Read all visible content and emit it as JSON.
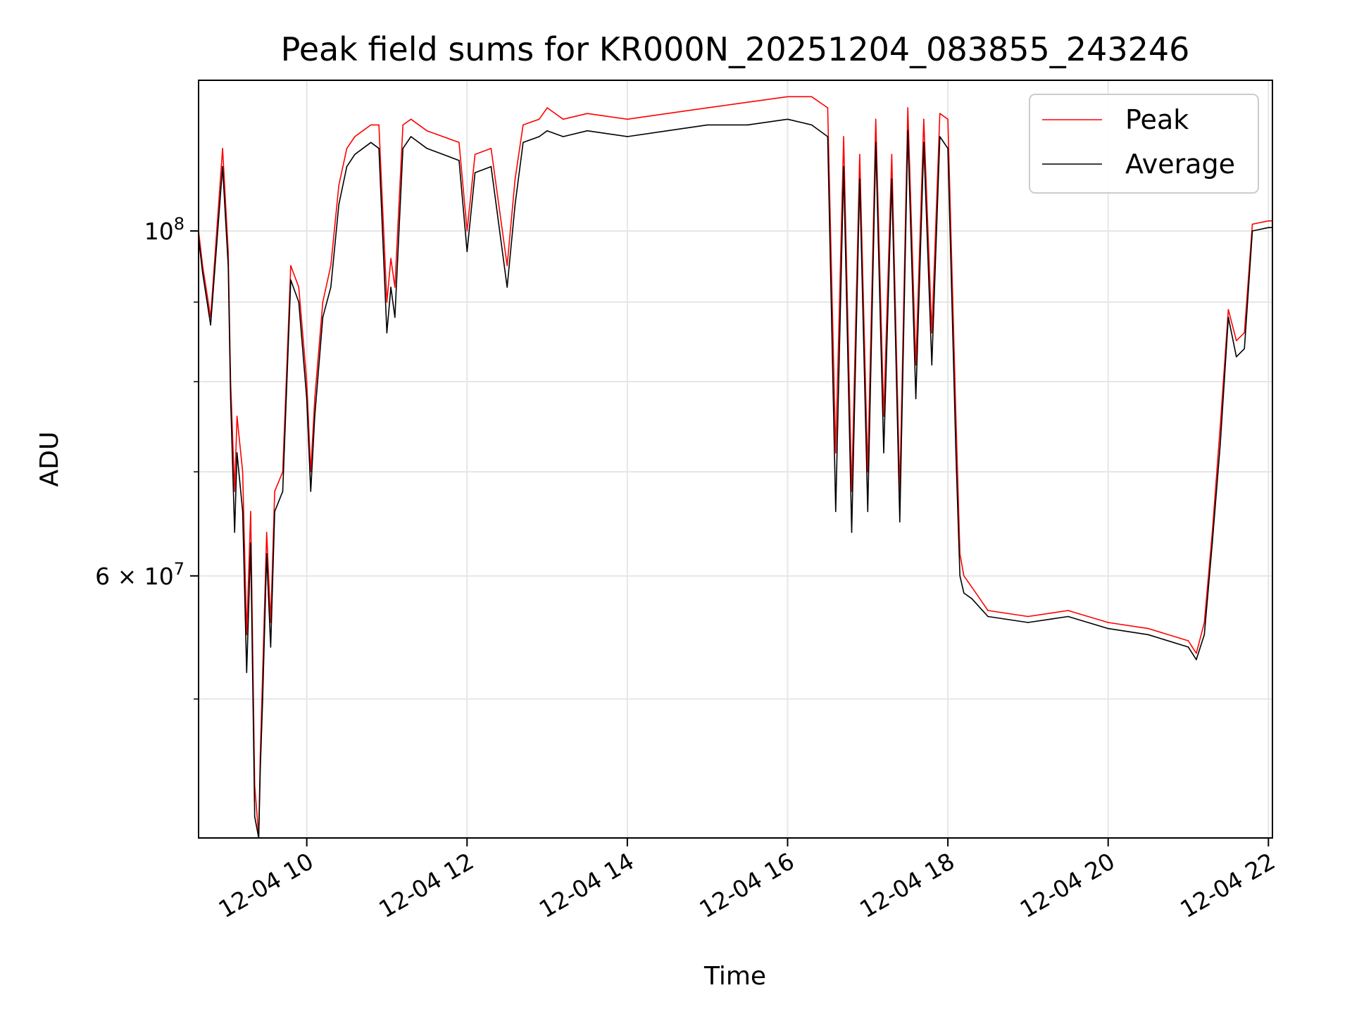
{
  "chart_data": {
    "type": "line",
    "title": "Peak field sums for KR000N_20251204_083855_243246",
    "xlabel": "Time",
    "ylabel": "ADU",
    "yscale": "log",
    "ylim": [
      40700000,
      125000000
    ],
    "xlim_hours": [
      8.65,
      22.05
    ],
    "grid": true,
    "legend_position": "upper right",
    "x_ticks": [
      {
        "hour": 10,
        "label": "12-04 10"
      },
      {
        "hour": 12,
        "label": "12-04 12"
      },
      {
        "hour": 14,
        "label": "12-04 14"
      },
      {
        "hour": 16,
        "label": "12-04 16"
      },
      {
        "hour": 18,
        "label": "12-04 18"
      },
      {
        "hour": 20,
        "label": "12-04 20"
      },
      {
        "hour": 22,
        "label": "12-04 22"
      }
    ],
    "y_major_ticks": [
      {
        "value": 100000000,
        "base": "10",
        "exp": "8"
      },
      {
        "value": 60000000,
        "base": "6 × 10",
        "exp": "7"
      }
    ],
    "y_minor_ticks": [
      50000000,
      70000000,
      80000000,
      90000000
    ],
    "series": [
      {
        "name": "Peak",
        "color": "#ff0000",
        "x_hours": [
          8.65,
          8.7,
          8.8,
          8.95,
          9.02,
          9.05,
          9.1,
          9.13,
          9.2,
          9.25,
          9.3,
          9.35,
          9.4,
          9.42,
          9.45,
          9.5,
          9.55,
          9.6,
          9.7,
          9.8,
          9.9,
          10.0,
          10.05,
          10.1,
          10.2,
          10.3,
          10.4,
          10.5,
          10.6,
          10.7,
          10.8,
          10.9,
          11.0,
          11.05,
          11.1,
          11.2,
          11.3,
          11.5,
          11.7,
          11.9,
          12.0,
          12.1,
          12.3,
          12.5,
          12.6,
          12.7,
          12.9,
          13.0,
          13.2,
          13.5,
          14.0,
          14.5,
          15.0,
          15.5,
          16.0,
          16.3,
          16.5,
          16.6,
          16.7,
          16.8,
          16.9,
          17.0,
          17.1,
          17.2,
          17.3,
          17.4,
          17.5,
          17.6,
          17.7,
          17.8,
          17.9,
          18.0,
          18.1,
          18.15,
          18.2,
          18.3,
          18.5,
          19.0,
          19.3,
          19.5,
          20.0,
          20.5,
          21.0,
          21.05,
          21.1,
          21.2,
          21.3,
          21.4,
          21.5,
          21.6,
          21.7,
          21.8,
          22.0,
          22.05
        ],
        "values": [
          100000000,
          95000000,
          88000000,
          113000000,
          97000000,
          80000000,
          68000000,
          76000000,
          70000000,
          55000000,
          66000000,
          44000000,
          40800000,
          46000000,
          52000000,
          64000000,
          56000000,
          68000000,
          70000000,
          95000000,
          92000000,
          80000000,
          70000000,
          78000000,
          90000000,
          95000000,
          107000000,
          113000000,
          115000000,
          116000000,
          117000000,
          117000000,
          90000000,
          96000000,
          92000000,
          117000000,
          118000000,
          116000000,
          115000000,
          114000000,
          100000000,
          112000000,
          113000000,
          95000000,
          108000000,
          117000000,
          118000000,
          120000000,
          118000000,
          119000000,
          118000000,
          119000000,
          120000000,
          121000000,
          122000000,
          122000000,
          120000000,
          72000000,
          115000000,
          68000000,
          112000000,
          70000000,
          118000000,
          76000000,
          112000000,
          68000000,
          120000000,
          82000000,
          118000000,
          86000000,
          119000000,
          118000000,
          76000000,
          62000000,
          60000000,
          59000000,
          57000000,
          56500000,
          56800000,
          57000000,
          56000000,
          55500000,
          54500000,
          54000000,
          53500000,
          56000000,
          64000000,
          75000000,
          89000000,
          85000000,
          86000000,
          101000000,
          101500000,
          101500000
        ]
      },
      {
        "name": "Average",
        "color": "#000000",
        "x_hours": [
          8.65,
          8.7,
          8.8,
          8.95,
          9.02,
          9.05,
          9.1,
          9.13,
          9.2,
          9.25,
          9.3,
          9.35,
          9.4,
          9.42,
          9.45,
          9.5,
          9.55,
          9.6,
          9.7,
          9.8,
          9.9,
          10.0,
          10.05,
          10.1,
          10.2,
          10.3,
          10.4,
          10.5,
          10.6,
          10.7,
          10.8,
          10.9,
          11.0,
          11.05,
          11.1,
          11.2,
          11.3,
          11.5,
          11.7,
          11.9,
          12.0,
          12.1,
          12.3,
          12.5,
          12.6,
          12.7,
          12.9,
          13.0,
          13.2,
          13.5,
          14.0,
          14.5,
          15.0,
          15.5,
          16.0,
          16.3,
          16.5,
          16.6,
          16.7,
          16.8,
          16.9,
          17.0,
          17.1,
          17.2,
          17.3,
          17.4,
          17.5,
          17.6,
          17.7,
          17.8,
          17.9,
          18.0,
          18.1,
          18.15,
          18.2,
          18.3,
          18.5,
          19.0,
          19.3,
          19.5,
          20.0,
          20.5,
          21.0,
          21.05,
          21.1,
          21.2,
          21.3,
          21.4,
          21.5,
          21.6,
          21.7,
          21.8,
          22.0,
          22.05
        ],
        "values": [
          99000000,
          94000000,
          87000000,
          110000000,
          95000000,
          78000000,
          64000000,
          72000000,
          66000000,
          52000000,
          63000000,
          42000000,
          40700000,
          45000000,
          50000000,
          62000000,
          54000000,
          66000000,
          68000000,
          93000000,
          90000000,
          78000000,
          68000000,
          76000000,
          88000000,
          92000000,
          104000000,
          110000000,
          112000000,
          113000000,
          114000000,
          113000000,
          86000000,
          92000000,
          88000000,
          113000000,
          115000000,
          113000000,
          112000000,
          111000000,
          97000000,
          109000000,
          110000000,
          92000000,
          104000000,
          114000000,
          115000000,
          116000000,
          115000000,
          116000000,
          115000000,
          116000000,
          117000000,
          117000000,
          118000000,
          117000000,
          115000000,
          66000000,
          110000000,
          64000000,
          108000000,
          66000000,
          114000000,
          72000000,
          108000000,
          65000000,
          116000000,
          78000000,
          114000000,
          82000000,
          115000000,
          113000000,
          72000000,
          60000000,
          58500000,
          58000000,
          56500000,
          56000000,
          56300000,
          56500000,
          55500000,
          55000000,
          54000000,
          53500000,
          53000000,
          55000000,
          63000000,
          73000000,
          88000000,
          83000000,
          84000000,
          100000000,
          100500000,
          100500000
        ]
      }
    ]
  }
}
